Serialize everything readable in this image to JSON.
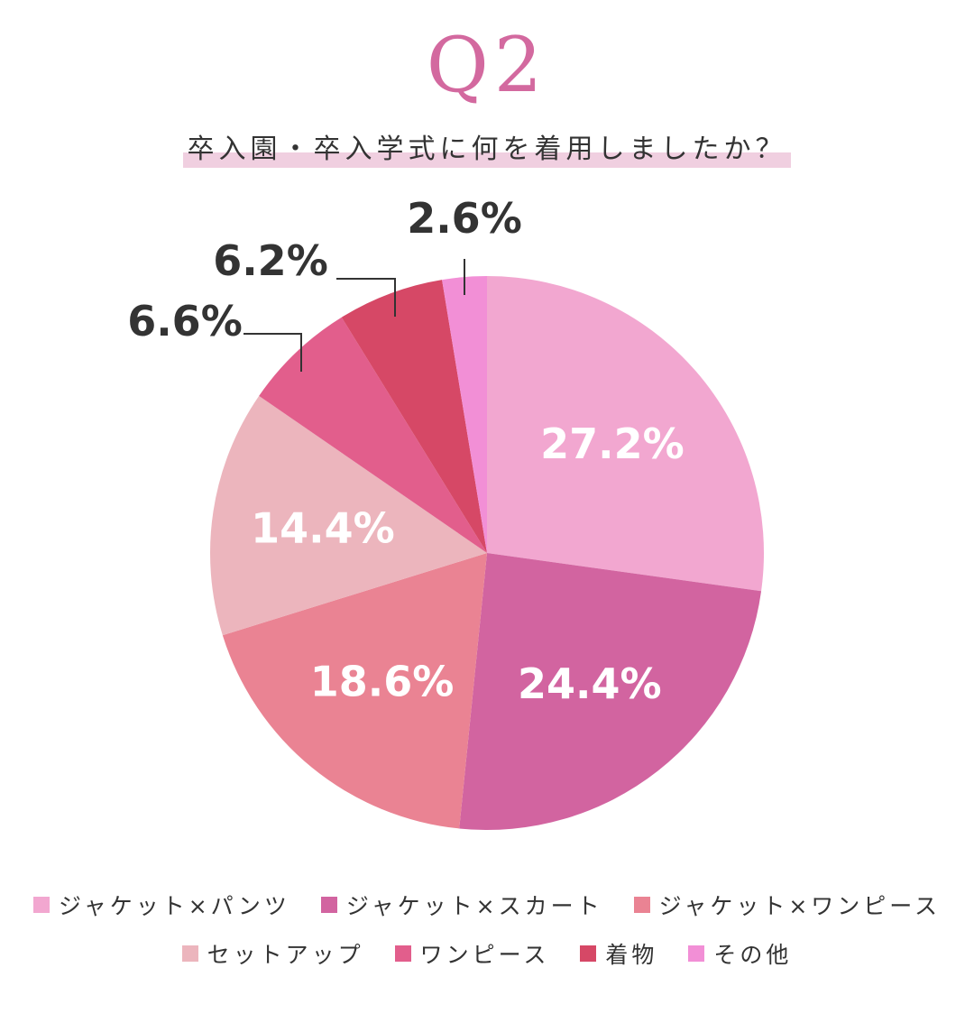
{
  "header": {
    "question_number": "Q2",
    "subtitle": "卒入園・卒入学式に何を着用しましたか？"
  },
  "chart_data": {
    "type": "pie",
    "start_angle_deg": 0,
    "direction": "clockwise",
    "slices": [
      {
        "label": "ジャケット×パンツ",
        "value": 27.2,
        "display": "27.2%",
        "color": "#f2a7d0",
        "label_style": "inside"
      },
      {
        "label": "ジャケット×スカート",
        "value": 24.4,
        "display": "24.4%",
        "color": "#d264a0",
        "label_style": "inside"
      },
      {
        "label": "ジャケット×ワンピース",
        "value": 18.6,
        "display": "18.6%",
        "color": "#ea8393",
        "label_style": "inside"
      },
      {
        "label": "セットアップ",
        "value": 14.4,
        "display": "14.4%",
        "color": "#ecb5bd",
        "label_style": "inside"
      },
      {
        "label": "ワンピース",
        "value": 6.6,
        "display": "6.6%",
        "color": "#e25e8c",
        "label_style": "callout"
      },
      {
        "label": "着物",
        "value": 6.2,
        "display": "6.2%",
        "color": "#d64866",
        "label_style": "callout"
      },
      {
        "label": "その他",
        "value": 2.6,
        "display": "2.6%",
        "color": "#f28fd6",
        "label_style": "callout"
      }
    ],
    "legend_rows": [
      [
        0,
        1,
        2
      ],
      [
        3,
        4,
        5,
        6
      ]
    ],
    "legend_position": "bottom"
  }
}
